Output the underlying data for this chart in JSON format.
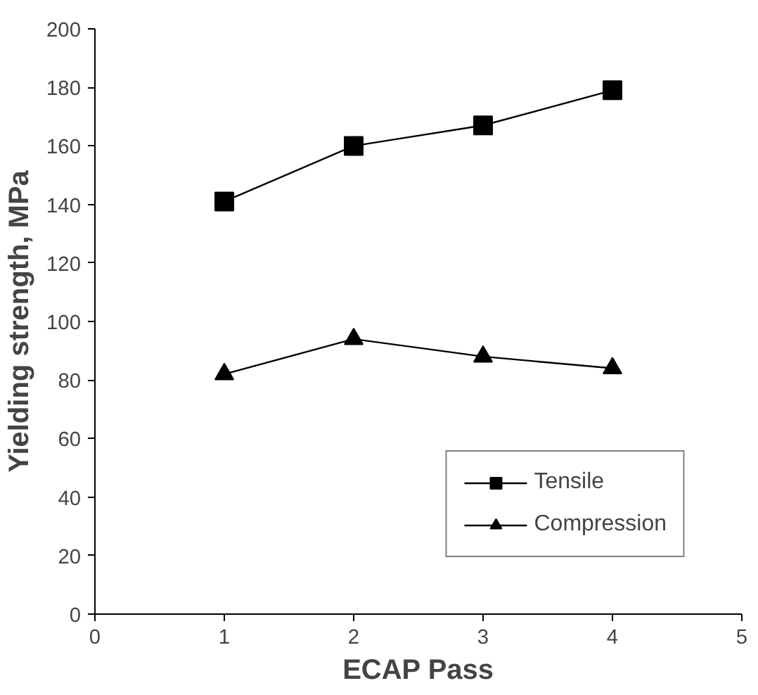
{
  "chart_data": {
    "type": "line",
    "xlabel": "ECAP Pass",
    "ylabel": "Yielding strength, MPa",
    "x": [
      1,
      2,
      3,
      4
    ],
    "series": [
      {
        "name": "Tensile",
        "color": "#000000",
        "marker": "square",
        "values": [
          141,
          160,
          167,
          179
        ]
      },
      {
        "name": "Compression",
        "color": "#000000",
        "marker": "triangle",
        "values": [
          82,
          94,
          88,
          84
        ]
      }
    ],
    "xlim": [
      0,
      5
    ],
    "xticks": [
      0,
      1,
      2,
      3,
      4,
      5
    ],
    "ylim": [
      0,
      200
    ],
    "yticks": [
      0,
      20,
      40,
      60,
      80,
      100,
      120,
      140,
      160,
      180,
      200
    ],
    "grid": false,
    "legend": "bottom right",
    "line_style": "solid"
  }
}
